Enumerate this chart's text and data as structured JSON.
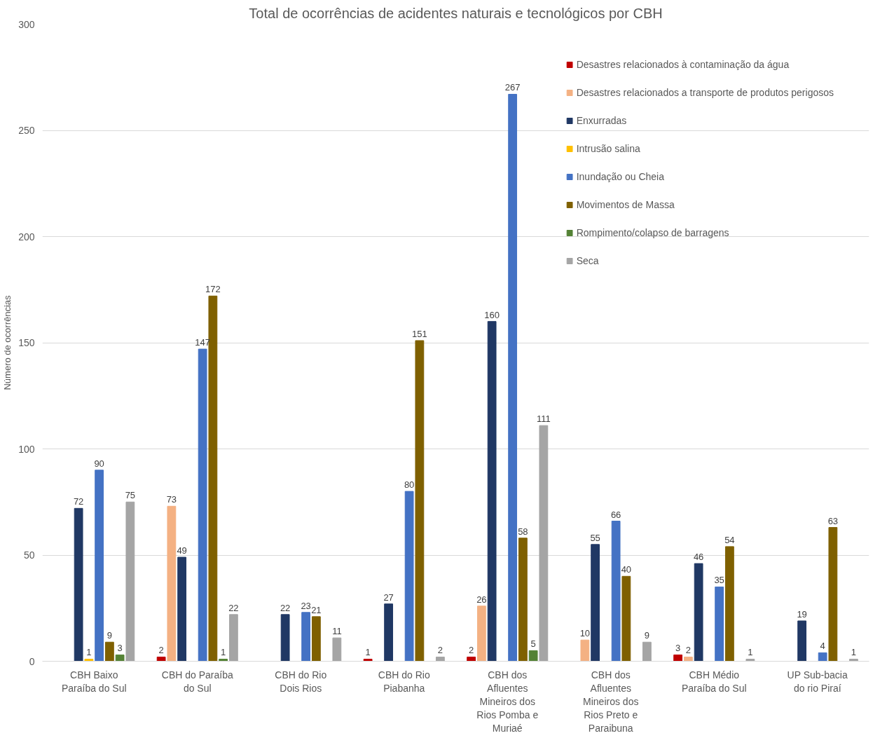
{
  "chart_data": {
    "type": "bar",
    "title": "Total de ocorrências de acidentes naturais e tecnológicos por CBH",
    "ylabel": "Número de ocorrências",
    "categories": [
      "CBH Baixo Paraíba do Sul",
      "CBH do Paraíba do Sul",
      "CBH do Rio Dois Rios",
      "CBH do Rio Piabanha",
      "CBH dos Afluentes Mineiros dos Rios Pomba e Muriaé",
      "CBH dos Afluentes Mineiros dos Rios Preto e Paraibuna",
      "CBH Médio Paraíba do Sul",
      "UP Sub-bacia do rio Piraí"
    ],
    "series": [
      {
        "name": "Desastres relacionados à contaminação da água",
        "color": "#c00000",
        "values": [
          null,
          2,
          null,
          1,
          2,
          null,
          3,
          null
        ]
      },
      {
        "name": "Desastres relacionados a transporte de produtos perigosos",
        "color": "#f4b183",
        "values": [
          null,
          73,
          null,
          null,
          26,
          10,
          2,
          null
        ]
      },
      {
        "name": "Enxurradas",
        "color": "#203864",
        "values": [
          72,
          49,
          22,
          27,
          160,
          55,
          46,
          19
        ]
      },
      {
        "name": "Intrusão salina",
        "color": "#ffc000",
        "values": [
          1,
          null,
          null,
          null,
          null,
          null,
          null,
          null
        ]
      },
      {
        "name": "Inundação ou Cheia",
        "color": "#4472c4",
        "values": [
          90,
          147,
          23,
          80,
          267,
          66,
          35,
          4
        ]
      },
      {
        "name": "Movimentos de Massa",
        "color": "#7f6000",
        "values": [
          9,
          172,
          21,
          151,
          58,
          40,
          54,
          63
        ]
      },
      {
        "name": "Rompimento/colapso de barragens",
        "color": "#548235",
        "values": [
          3,
          1,
          null,
          null,
          5,
          null,
          null,
          null
        ]
      },
      {
        "name": "Seca",
        "color": "#a5a5a5",
        "values": [
          75,
          22,
          11,
          2,
          111,
          9,
          1,
          1
        ]
      }
    ],
    "ylim": [
      0,
      300
    ],
    "yticks": [
      0,
      50,
      100,
      150,
      200,
      250,
      300
    ],
    "grid": "y",
    "legend": "right",
    "data_labels": true
  }
}
